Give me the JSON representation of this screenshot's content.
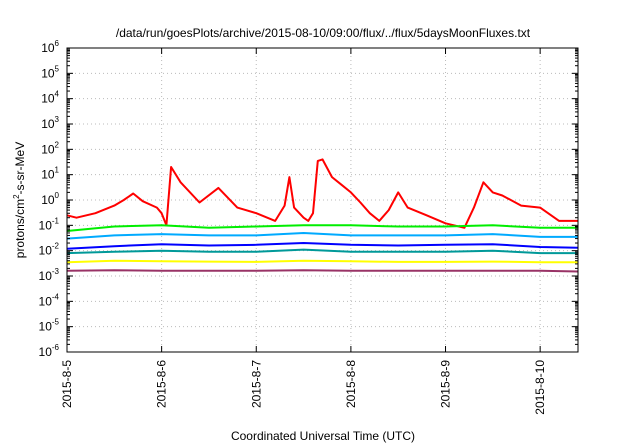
{
  "chart_data": {
    "type": "line",
    "title": "/data/run/goesPlots/archive/2015-08-10/09:00/flux/../flux/5daysMoonFluxes.txt",
    "xlabel": "Coordinated Universal Time (UTC)",
    "ylabel": "protons/cm2-s-sr-MeV",
    "ylabel_parts": {
      "pre": "protons/cm",
      "sup": "2",
      "post": "-s-sr-MeV"
    },
    "yscale": "log",
    "ylim_exp": [
      -6,
      6
    ],
    "yticks": [
      {
        "base": "10",
        "exp": "-6"
      },
      {
        "base": "10",
        "exp": "-5"
      },
      {
        "base": "10",
        "exp": "-4"
      },
      {
        "base": "10",
        "exp": "-3"
      },
      {
        "base": "10",
        "exp": "-2"
      },
      {
        "base": "10",
        "exp": "-1"
      },
      {
        "base": "10",
        "exp": "0"
      },
      {
        "base": "10",
        "exp": "1"
      },
      {
        "base": "10",
        "exp": "2"
      },
      {
        "base": "10",
        "exp": "3"
      },
      {
        "base": "10",
        "exp": "4"
      },
      {
        "base": "10",
        "exp": "5"
      },
      {
        "base": "10",
        "exp": "6"
      }
    ],
    "xlim_days": [
      0,
      5.4
    ],
    "xticks": [
      {
        "day": 0,
        "label": "2015-8-5"
      },
      {
        "day": 1,
        "label": "2015-8-6"
      },
      {
        "day": 2,
        "label": "2015-8-7"
      },
      {
        "day": 3,
        "label": "2015-8-8"
      },
      {
        "day": 4,
        "label": "2015-8-9"
      },
      {
        "day": 5,
        "label": "2015-8-10"
      }
    ],
    "grid": true,
    "series": [
      {
        "color": "#ff0000",
        "x": [
          0,
          0.1,
          0.3,
          0.5,
          0.6,
          0.7,
          0.8,
          0.95,
          1.0,
          1.05,
          1.1,
          1.2,
          1.4,
          1.6,
          1.8,
          2.0,
          2.2,
          2.3,
          2.35,
          2.4,
          2.5,
          2.55,
          2.6,
          2.65,
          2.7,
          2.8,
          2.9,
          3.0,
          3.1,
          3.2,
          3.3,
          3.4,
          3.5,
          3.6,
          3.8,
          4.0,
          4.2,
          4.3,
          4.4,
          4.5,
          4.6,
          4.8,
          5.0,
          5.2,
          5.4
        ],
        "y": [
          0.25,
          0.2,
          0.3,
          0.6,
          1.0,
          1.8,
          0.9,
          0.5,
          0.3,
          0.1,
          20,
          5,
          0.8,
          3,
          0.5,
          0.3,
          0.15,
          0.6,
          8,
          0.5,
          0.2,
          0.15,
          0.3,
          35,
          40,
          8,
          4,
          2,
          0.8,
          0.3,
          0.15,
          0.4,
          2,
          0.5,
          0.25,
          0.12,
          0.08,
          0.5,
          5,
          2,
          1.5,
          0.6,
          0.5,
          0.15,
          0.15
        ]
      },
      {
        "color": "#00ee00",
        "x": [
          0,
          0.5,
          1.0,
          1.5,
          2.0,
          2.5,
          3.0,
          3.5,
          4.0,
          4.5,
          5.0,
          5.4
        ],
        "y": [
          0.06,
          0.09,
          0.1,
          0.08,
          0.09,
          0.1,
          0.1,
          0.09,
          0.09,
          0.1,
          0.08,
          0.08
        ]
      },
      {
        "color": "#00aaff",
        "x": [
          0,
          0.5,
          1.0,
          1.5,
          2.0,
          2.5,
          3.0,
          3.5,
          4.0,
          4.5,
          5.0,
          5.4
        ],
        "y": [
          0.03,
          0.04,
          0.045,
          0.04,
          0.04,
          0.05,
          0.04,
          0.04,
          0.04,
          0.045,
          0.035,
          0.035
        ]
      },
      {
        "color": "#0000ff",
        "x": [
          0,
          0.5,
          1.0,
          1.5,
          2.0,
          2.5,
          3.0,
          3.5,
          4.0,
          4.5,
          5.0,
          5.4
        ],
        "y": [
          0.012,
          0.015,
          0.018,
          0.016,
          0.017,
          0.02,
          0.017,
          0.016,
          0.017,
          0.018,
          0.014,
          0.013
        ]
      },
      {
        "color": "#009999",
        "x": [
          0,
          0.5,
          1.0,
          1.5,
          2.0,
          2.5,
          3.0,
          3.5,
          4.0,
          4.5,
          5.0,
          5.4
        ],
        "y": [
          0.008,
          0.009,
          0.01,
          0.009,
          0.009,
          0.011,
          0.009,
          0.009,
          0.009,
          0.01,
          0.008,
          0.008
        ]
      },
      {
        "color": "#ffff00",
        "x": [
          0,
          0.5,
          1.0,
          1.5,
          2.0,
          2.5,
          3.0,
          3.5,
          4.0,
          4.5,
          5.0,
          5.4
        ],
        "y": [
          0.0035,
          0.004,
          0.0038,
          0.0037,
          0.0036,
          0.004,
          0.0038,
          0.0036,
          0.0036,
          0.0037,
          0.0035,
          0.0035
        ]
      },
      {
        "color": "#993366",
        "x": [
          0,
          0.5,
          1.0,
          1.5,
          2.0,
          2.5,
          3.0,
          3.5,
          4.0,
          4.5,
          5.0,
          5.4
        ],
        "y": [
          0.0016,
          0.0017,
          0.0016,
          0.0016,
          0.0016,
          0.0017,
          0.0016,
          0.0016,
          0.0016,
          0.0016,
          0.0016,
          0.0015
        ]
      }
    ]
  }
}
